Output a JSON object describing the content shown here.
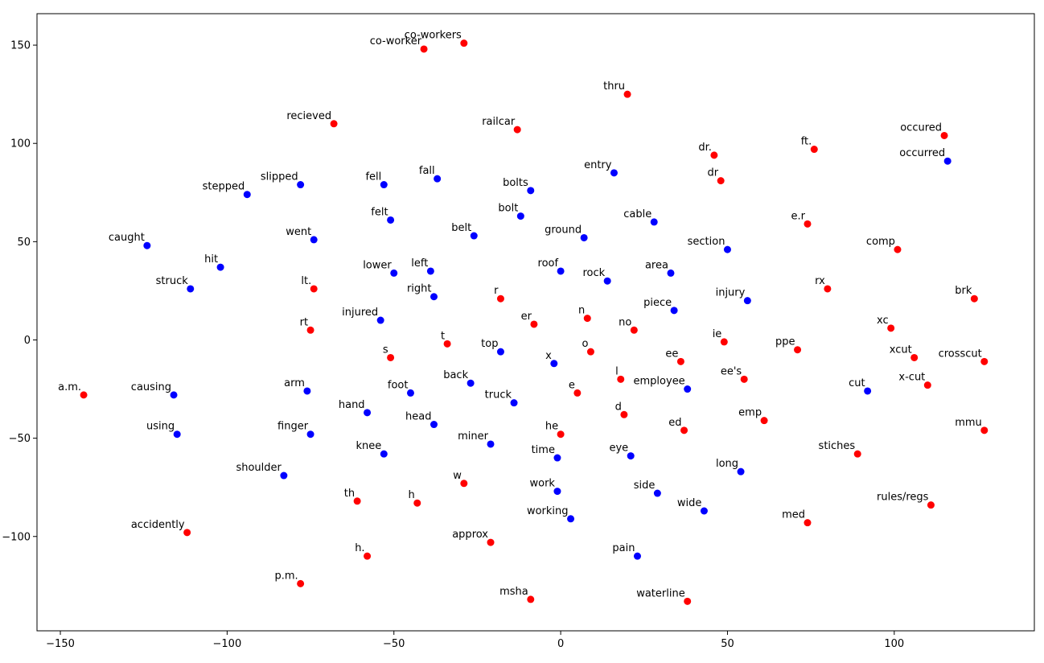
{
  "chart_data": {
    "type": "scatter",
    "title": "",
    "xlabel": "",
    "ylabel": "",
    "xlim": [
      -157,
      142
    ],
    "ylim": [
      -148,
      166
    ],
    "xticks": [
      -150,
      -100,
      -50,
      0,
      50,
      100
    ],
    "yticks": [
      -100,
      -50,
      0,
      50,
      100,
      150
    ],
    "grid": false,
    "colors": {
      "blue": "#0000ff",
      "red": "#ff0000"
    },
    "series": [
      {
        "color": "#0000ff",
        "points": [
          {
            "label": "slipped",
            "x": -78,
            "y": 79
          },
          {
            "label": "stepped",
            "x": -94,
            "y": 74
          },
          {
            "label": "fell",
            "x": -53,
            "y": 79
          },
          {
            "label": "fall",
            "x": -37,
            "y": 82
          },
          {
            "label": "bolts",
            "x": -9,
            "y": 76
          },
          {
            "label": "entry",
            "x": 16,
            "y": 85
          },
          {
            "label": "occurred",
            "x": 116,
            "y": 91
          },
          {
            "label": "felt",
            "x": -51,
            "y": 61
          },
          {
            "label": "bolt",
            "x": -12,
            "y": 63
          },
          {
            "label": "cable",
            "x": 28,
            "y": 60
          },
          {
            "label": "caught",
            "x": -124,
            "y": 48
          },
          {
            "label": "went",
            "x": -74,
            "y": 51
          },
          {
            "label": "belt",
            "x": -26,
            "y": 53
          },
          {
            "label": "ground",
            "x": 7,
            "y": 52
          },
          {
            "label": "section",
            "x": 50,
            "y": 46
          },
          {
            "label": "hit",
            "x": -102,
            "y": 37
          },
          {
            "label": "lower",
            "x": -50,
            "y": 34
          },
          {
            "label": "left",
            "x": -39,
            "y": 35
          },
          {
            "label": "roof",
            "x": 0,
            "y": 35
          },
          {
            "label": "rock",
            "x": 14,
            "y": 30
          },
          {
            "label": "area",
            "x": 33,
            "y": 34
          },
          {
            "label": "struck",
            "x": -111,
            "y": 26
          },
          {
            "label": "right",
            "x": -38,
            "y": 22
          },
          {
            "label": "injury",
            "x": 56,
            "y": 20
          },
          {
            "label": "piece",
            "x": 34,
            "y": 15
          },
          {
            "label": "injured",
            "x": -54,
            "y": 10
          },
          {
            "label": "top",
            "x": -18,
            "y": -6
          },
          {
            "label": "x",
            "x": -2,
            "y": -12
          },
          {
            "label": "back",
            "x": -27,
            "y": -22
          },
          {
            "label": "employee",
            "x": 38,
            "y": -25
          },
          {
            "label": "cut",
            "x": 92,
            "y": -26
          },
          {
            "label": "causing",
            "x": -116,
            "y": -28
          },
          {
            "label": "arm",
            "x": -76,
            "y": -26
          },
          {
            "label": "foot",
            "x": -45,
            "y": -27
          },
          {
            "label": "truck",
            "x": -14,
            "y": -32
          },
          {
            "label": "hand",
            "x": -58,
            "y": -37
          },
          {
            "label": "head",
            "x": -38,
            "y": -43
          },
          {
            "label": "using",
            "x": -115,
            "y": -48
          },
          {
            "label": "finger",
            "x": -75,
            "y": -48
          },
          {
            "label": "miner",
            "x": -21,
            "y": -53
          },
          {
            "label": "knee",
            "x": -53,
            "y": -58
          },
          {
            "label": "time",
            "x": -1,
            "y": -60
          },
          {
            "label": "eye",
            "x": 21,
            "y": -59
          },
          {
            "label": "long",
            "x": 54,
            "y": -67
          },
          {
            "label": "shoulder",
            "x": -83,
            "y": -69
          },
          {
            "label": "work",
            "x": -1,
            "y": -77
          },
          {
            "label": "side",
            "x": 29,
            "y": -78
          },
          {
            "label": "wide",
            "x": 43,
            "y": -87
          },
          {
            "label": "working",
            "x": 3,
            "y": -91
          },
          {
            "label": "pain",
            "x": 23,
            "y": -110
          }
        ]
      },
      {
        "color": "#ff0000",
        "points": [
          {
            "label": "co-workers",
            "x": -29,
            "y": 151
          },
          {
            "label": "co-worker",
            "x": -41,
            "y": 148
          },
          {
            "label": "thru",
            "x": 20,
            "y": 125
          },
          {
            "label": "recieved",
            "x": -68,
            "y": 110
          },
          {
            "label": "railcar",
            "x": -13,
            "y": 107
          },
          {
            "label": "occured",
            "x": 115,
            "y": 104
          },
          {
            "label": "ft.",
            "x": 76,
            "y": 97
          },
          {
            "label": "dr.",
            "x": 46,
            "y": 94
          },
          {
            "label": "dr",
            "x": 48,
            "y": 81
          },
          {
            "label": "e.r",
            "x": 74,
            "y": 59
          },
          {
            "label": "comp",
            "x": 101,
            "y": 46
          },
          {
            "label": "lt.",
            "x": -74,
            "y": 26
          },
          {
            "label": "rx",
            "x": 80,
            "y": 26
          },
          {
            "label": "brk",
            "x": 124,
            "y": 21
          },
          {
            "label": "r",
            "x": -18,
            "y": 21
          },
          {
            "label": "n",
            "x": 8,
            "y": 11
          },
          {
            "label": "er",
            "x": -8,
            "y": 8
          },
          {
            "label": "rt",
            "x": -75,
            "y": 5
          },
          {
            "label": "no",
            "x": 22,
            "y": 5
          },
          {
            "label": "xc",
            "x": 99,
            "y": 6
          },
          {
            "label": "t",
            "x": -34,
            "y": -2
          },
          {
            "label": "ie",
            "x": 49,
            "y": -1
          },
          {
            "label": "o",
            "x": 9,
            "y": -6
          },
          {
            "label": "ppe",
            "x": 71,
            "y": -5
          },
          {
            "label": "s",
            "x": -51,
            "y": -9
          },
          {
            "label": "xcut",
            "x": 106,
            "y": -9
          },
          {
            "label": "crosscut",
            "x": 127,
            "y": -11
          },
          {
            "label": "ee",
            "x": 36,
            "y": -11
          },
          {
            "label": "l",
            "x": 18,
            "y": -20
          },
          {
            "label": "ee's",
            "x": 55,
            "y": -20
          },
          {
            "label": "x-cut",
            "x": 110,
            "y": -23
          },
          {
            "label": "a.m.",
            "x": -143,
            "y": -28
          },
          {
            "label": "e",
            "x": 5,
            "y": -27
          },
          {
            "label": "d",
            "x": 19,
            "y": -38
          },
          {
            "label": "emp",
            "x": 61,
            "y": -41
          },
          {
            "label": "ed",
            "x": 37,
            "y": -46
          },
          {
            "label": "mmu",
            "x": 127,
            "y": -46
          },
          {
            "label": "he",
            "x": 0,
            "y": -48
          },
          {
            "label": "stiches",
            "x": 89,
            "y": -58
          },
          {
            "label": "w",
            "x": -29,
            "y": -73
          },
          {
            "label": "th",
            "x": -61,
            "y": -82
          },
          {
            "label": "h",
            "x": -43,
            "y": -83
          },
          {
            "label": "rules/regs",
            "x": 111,
            "y": -84
          },
          {
            "label": "med",
            "x": 74,
            "y": -93
          },
          {
            "label": "accidently",
            "x": -112,
            "y": -98
          },
          {
            "label": "approx",
            "x": -21,
            "y": -103
          },
          {
            "label": "h.",
            "x": -58,
            "y": -110
          },
          {
            "label": "p.m.",
            "x": -78,
            "y": -124
          },
          {
            "label": "msha",
            "x": -9,
            "y": -132
          },
          {
            "label": "waterline",
            "x": 38,
            "y": -133
          }
        ]
      }
    ]
  }
}
